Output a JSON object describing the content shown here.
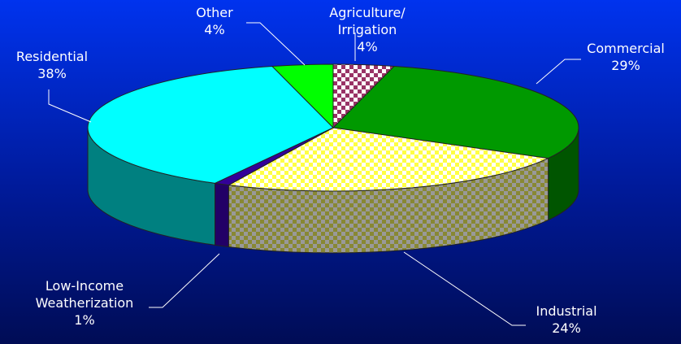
{
  "chart_data": {
    "type": "pie",
    "style": "3d",
    "title": "",
    "categories": [
      "Agriculture/ Irrigation",
      "Commercial",
      "Industrial",
      "Low-Income Weatherization",
      "Residential",
      "Other"
    ],
    "values": [
      4,
      29,
      24,
      1,
      38,
      4
    ],
    "labels": [
      {
        "lines": [
          "Agriculture/",
          "Irrigation"
        ],
        "pct": "4%"
      },
      {
        "lines": [
          "Commercial"
        ],
        "pct": "29%"
      },
      {
        "lines": [
          "Industrial"
        ],
        "pct": "24%"
      },
      {
        "lines": [
          "Low-Income",
          "Weatherization"
        ],
        "pct": "1%"
      },
      {
        "lines": [
          "Residential"
        ],
        "pct": "38%"
      },
      {
        "lines": [
          "Other"
        ],
        "pct": "4%"
      }
    ],
    "colors": [
      "#993366",
      "#009900",
      "#ffff66",
      "#330099",
      "#00ffff",
      "#00ff00"
    ],
    "side_colors": [
      "#662244",
      "#005500",
      "#888844",
      "#220066",
      "#008080",
      "#009900"
    ],
    "patterns": [
      "checker",
      "solid",
      "checker",
      "solid",
      "solid",
      "solid"
    ],
    "background": "#0033ee"
  }
}
